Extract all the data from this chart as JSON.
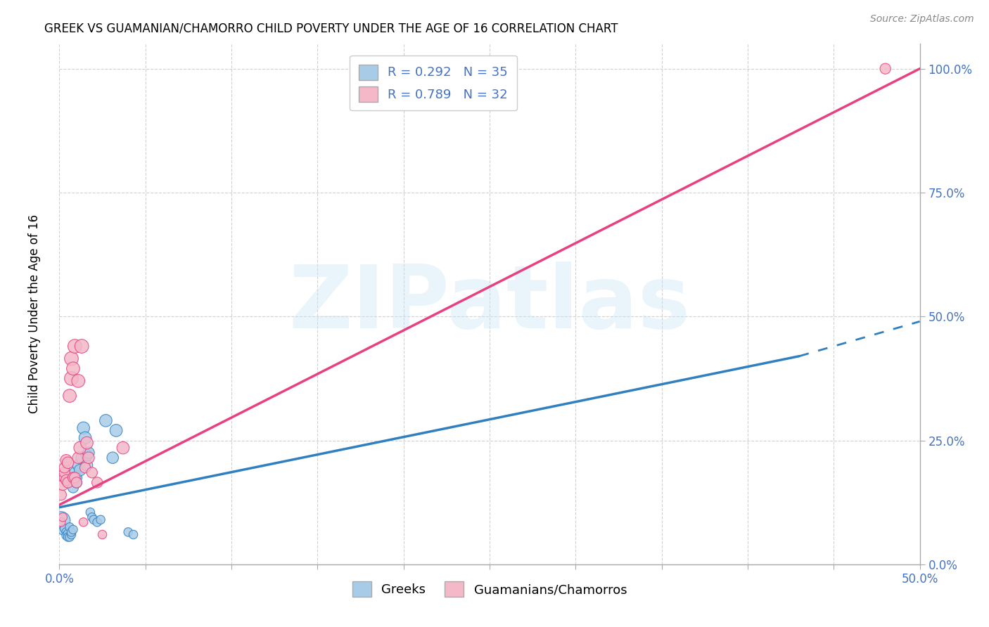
{
  "title": "GREEK VS GUAMANIAN/CHAMORRO CHILD POVERTY UNDER THE AGE OF 16 CORRELATION CHART",
  "source": "Source: ZipAtlas.com",
  "xlim": [
    0,
    0.5
  ],
  "ylim": [
    0,
    1.05
  ],
  "ylabel": "Child Poverty Under the Age of 16",
  "watermark": "ZIPatlas",
  "blue_color": "#a8cce8",
  "pink_color": "#f4b8c8",
  "blue_line_color": "#3080c0",
  "pink_line_color": "#e84080",
  "blue_line": [
    [
      0,
      0.115
    ],
    [
      0.43,
      0.42
    ]
  ],
  "blue_dashed_line": [
    [
      0.43,
      0.42
    ],
    [
      0.5,
      0.49
    ]
  ],
  "pink_line": [
    [
      0,
      0.12
    ],
    [
      0.5,
      1.0
    ]
  ],
  "blue_scatter": [
    [
      0.001,
      0.088
    ],
    [
      0.002,
      0.068
    ],
    [
      0.003,
      0.072
    ],
    [
      0.004,
      0.065
    ],
    [
      0.004,
      0.058
    ],
    [
      0.005,
      0.062
    ],
    [
      0.005,
      0.055
    ],
    [
      0.006,
      0.055
    ],
    [
      0.006,
      0.075
    ],
    [
      0.007,
      0.06
    ],
    [
      0.007,
      0.065
    ],
    [
      0.008,
      0.07
    ],
    [
      0.008,
      0.155
    ],
    [
      0.009,
      0.17
    ],
    [
      0.009,
      0.185
    ],
    [
      0.01,
      0.175
    ],
    [
      0.01,
      0.165
    ],
    [
      0.011,
      0.2
    ],
    [
      0.012,
      0.19
    ],
    [
      0.013,
      0.215
    ],
    [
      0.014,
      0.275
    ],
    [
      0.015,
      0.255
    ],
    [
      0.016,
      0.2
    ],
    [
      0.016,
      0.22
    ],
    [
      0.017,
      0.225
    ],
    [
      0.018,
      0.105
    ],
    [
      0.019,
      0.095
    ],
    [
      0.02,
      0.09
    ],
    [
      0.022,
      0.085
    ],
    [
      0.024,
      0.09
    ],
    [
      0.027,
      0.29
    ],
    [
      0.031,
      0.215
    ],
    [
      0.033,
      0.27
    ],
    [
      0.04,
      0.065
    ],
    [
      0.043,
      0.06
    ]
  ],
  "pink_scatter": [
    [
      0.001,
      0.085
    ],
    [
      0.001,
      0.14
    ],
    [
      0.002,
      0.16
    ],
    [
      0.002,
      0.095
    ],
    [
      0.003,
      0.175
    ],
    [
      0.003,
      0.185
    ],
    [
      0.003,
      0.195
    ],
    [
      0.004,
      0.17
    ],
    [
      0.004,
      0.21
    ],
    [
      0.005,
      0.165
    ],
    [
      0.005,
      0.205
    ],
    [
      0.006,
      0.34
    ],
    [
      0.007,
      0.375
    ],
    [
      0.007,
      0.415
    ],
    [
      0.008,
      0.175
    ],
    [
      0.008,
      0.395
    ],
    [
      0.009,
      0.175
    ],
    [
      0.009,
      0.44
    ],
    [
      0.01,
      0.165
    ],
    [
      0.011,
      0.215
    ],
    [
      0.011,
      0.37
    ],
    [
      0.012,
      0.235
    ],
    [
      0.013,
      0.44
    ],
    [
      0.014,
      0.085
    ],
    [
      0.015,
      0.195
    ],
    [
      0.016,
      0.245
    ],
    [
      0.017,
      0.215
    ],
    [
      0.019,
      0.185
    ],
    [
      0.022,
      0.165
    ],
    [
      0.025,
      0.06
    ],
    [
      0.037,
      0.235
    ],
    [
      0.48,
      1.0
    ]
  ],
  "blue_scatter_sizes": [
    350,
    80,
    80,
    80,
    80,
    80,
    80,
    80,
    80,
    80,
    80,
    80,
    120,
    120,
    120,
    120,
    120,
    140,
    140,
    140,
    160,
    160,
    140,
    140,
    140,
    80,
    80,
    80,
    80,
    80,
    160,
    140,
    160,
    80,
    80
  ],
  "pink_scatter_sizes": [
    80,
    120,
    120,
    80,
    120,
    120,
    120,
    120,
    140,
    120,
    140,
    180,
    200,
    200,
    120,
    180,
    120,
    200,
    120,
    140,
    180,
    160,
    200,
    80,
    120,
    160,
    140,
    120,
    120,
    80,
    160,
    120
  ]
}
